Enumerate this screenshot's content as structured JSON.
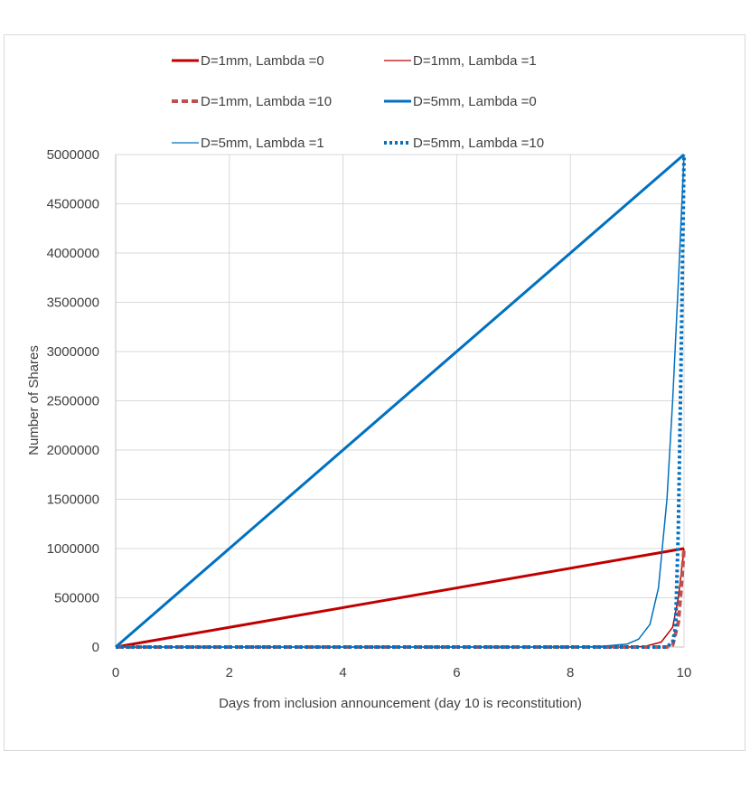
{
  "chart_data": {
    "type": "line",
    "title": "",
    "xlabel": "Days from inclusion announcement (day 10 is reconstitution)",
    "ylabel": "Number of Shares",
    "xlim": [
      0,
      10
    ],
    "ylim": [
      0,
      5000000
    ],
    "x_ticks": [
      "0",
      "2",
      "4",
      "6",
      "8",
      "10"
    ],
    "x_tick_values": [
      0,
      2,
      4,
      6,
      8,
      10
    ],
    "y_ticks": [
      "0",
      "500000",
      "1000000",
      "1500000",
      "2000000",
      "2500000",
      "3000000",
      "3500000",
      "4000000",
      "4500000",
      "5000000"
    ],
    "y_tick_values": [
      0,
      500000,
      1000000,
      1500000,
      2000000,
      2500000,
      3000000,
      3500000,
      4000000,
      4500000,
      5000000
    ],
    "grid": "vertical-and-horizontal",
    "legend_position": "top",
    "series": [
      {
        "name": "D=1mm, Lambda =0",
        "color": "#c00000",
        "style": "solid-thick",
        "points": [
          [
            0,
            0
          ],
          [
            10,
            1000000
          ]
        ]
      },
      {
        "name": "D=1mm, Lambda =1",
        "color": "#c00000",
        "style": "solid-thin",
        "points": [
          [
            0,
            0
          ],
          [
            9,
            0
          ],
          [
            9.3,
            5000
          ],
          [
            9.6,
            50000
          ],
          [
            9.8,
            200000
          ],
          [
            9.9,
            500000
          ],
          [
            10,
            1000000
          ]
        ]
      },
      {
        "name": "D=1mm, Lambda =10",
        "color": "#c0504d",
        "style": "dashed-thick",
        "points": [
          [
            0,
            0
          ],
          [
            9.7,
            0
          ],
          [
            9.8,
            20000
          ],
          [
            9.9,
            250000
          ],
          [
            9.95,
            600000
          ],
          [
            10,
            1000000
          ]
        ]
      },
      {
        "name": "D=5mm, Lambda =0",
        "color": "#0070c0",
        "style": "solid-thick",
        "points": [
          [
            0,
            0
          ],
          [
            10,
            5000000
          ]
        ]
      },
      {
        "name": "D=5mm, Lambda =1",
        "color": "#0070c0",
        "style": "solid-thin",
        "points": [
          [
            0,
            0
          ],
          [
            8,
            0
          ],
          [
            8.5,
            5000
          ],
          [
            9.0,
            30000
          ],
          [
            9.2,
            80000
          ],
          [
            9.4,
            230000
          ],
          [
            9.55,
            600000
          ],
          [
            9.7,
            1500000
          ],
          [
            9.8,
            2500000
          ],
          [
            9.9,
            3700000
          ],
          [
            10,
            5000000
          ]
        ]
      },
      {
        "name": "D=5mm, Lambda =10",
        "color": "#0070c0",
        "style": "dotted-thick",
        "points": [
          [
            0,
            0
          ],
          [
            9.7,
            0
          ],
          [
            9.8,
            50000
          ],
          [
            9.85,
            200000
          ],
          [
            9.9,
            1200000
          ],
          [
            9.95,
            3000000
          ],
          [
            10,
            5000000
          ]
        ]
      }
    ]
  }
}
